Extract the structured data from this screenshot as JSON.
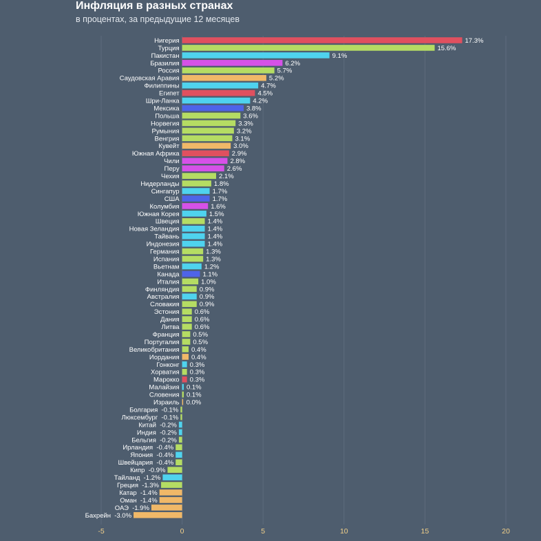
{
  "header": {
    "title": "Инфляция в разных странах",
    "subtitle": "в процентах, за предыдущие 12 месяцев"
  },
  "colors": {
    "background": "#4e5d6e",
    "red": "#e0505f",
    "green": "#b5dc63",
    "cyan": "#4fd3ee",
    "magenta": "#d651e8",
    "orange": "#f0b868",
    "blue": "#4e64e8",
    "tick_text": "#f2d08a"
  },
  "chart_data": {
    "type": "bar",
    "orientation": "horizontal",
    "title": "Инфляция в разных странах",
    "subtitle": "в процентах, за предыдущие 12 месяцев",
    "xlim": [
      -5,
      20
    ],
    "xticks": [
      "-5",
      "0",
      "5",
      "10",
      "15",
      "20"
    ],
    "grid": true,
    "legend": "none",
    "bars": [
      {
        "label": "Нигерия",
        "value": 17.3,
        "text": "17.3%",
        "color": "#e0505f"
      },
      {
        "label": "Турция",
        "value": 15.6,
        "text": "15.6%",
        "color": "#b5dc63"
      },
      {
        "label": "Пакистан",
        "value": 9.1,
        "text": "9.1%",
        "color": "#4fd3ee"
      },
      {
        "label": "Бразилия",
        "value": 6.2,
        "text": "6.2%",
        "color": "#d651e8"
      },
      {
        "label": "Россия",
        "value": 5.7,
        "text": "5.7%",
        "color": "#b5dc63"
      },
      {
        "label": "Саудовская Аравия",
        "value": 5.2,
        "text": "5.2%",
        "color": "#f0b868"
      },
      {
        "label": "Филиппины",
        "value": 4.7,
        "text": "4.7%",
        "color": "#4fd3ee"
      },
      {
        "label": "Египет",
        "value": 4.5,
        "text": "4.5%",
        "color": "#e0505f"
      },
      {
        "label": "Шри-Ланка",
        "value": 4.2,
        "text": "4.2%",
        "color": "#4fd3ee"
      },
      {
        "label": "Мексика",
        "value": 3.8,
        "text": "3.8%",
        "color": "#4e64e8"
      },
      {
        "label": "Польша",
        "value": 3.6,
        "text": "3.6%",
        "color": "#b5dc63"
      },
      {
        "label": "Норвегия",
        "value": 3.3,
        "text": "3.3%",
        "color": "#b5dc63"
      },
      {
        "label": "Румыния",
        "value": 3.2,
        "text": "3.2%",
        "color": "#b5dc63"
      },
      {
        "label": "Венгрия",
        "value": 3.1,
        "text": "3.1%",
        "color": "#b5dc63"
      },
      {
        "label": "Кувейт",
        "value": 3.0,
        "text": "3.0%",
        "color": "#f0b868"
      },
      {
        "label": "Южная Африка",
        "value": 2.9,
        "text": "2.9%",
        "color": "#e0505f"
      },
      {
        "label": "Чили",
        "value": 2.8,
        "text": "2.8%",
        "color": "#d651e8"
      },
      {
        "label": "Перу",
        "value": 2.6,
        "text": "2.6%",
        "color": "#d651e8"
      },
      {
        "label": "Чехия",
        "value": 2.1,
        "text": "2.1%",
        "color": "#b5dc63"
      },
      {
        "label": "Нидерланды",
        "value": 1.8,
        "text": "1.8%",
        "color": "#b5dc63"
      },
      {
        "label": "Сингапур",
        "value": 1.7,
        "text": "1.7%",
        "color": "#4fd3ee"
      },
      {
        "label": "США",
        "value": 1.7,
        "text": "1.7%",
        "color": "#4e64e8"
      },
      {
        "label": "Колумбия",
        "value": 1.6,
        "text": "1.6%",
        "color": "#d651e8"
      },
      {
        "label": "Южная Корея",
        "value": 1.5,
        "text": "1.5%",
        "color": "#4fd3ee"
      },
      {
        "label": "Швеция",
        "value": 1.4,
        "text": "1.4%",
        "color": "#b5dc63"
      },
      {
        "label": "Новая Зеландия",
        "value": 1.4,
        "text": "1.4%",
        "color": "#4fd3ee"
      },
      {
        "label": "Тайвань",
        "value": 1.4,
        "text": "1.4%",
        "color": "#4fd3ee"
      },
      {
        "label": "Индонезия",
        "value": 1.4,
        "text": "1.4%",
        "color": "#4fd3ee"
      },
      {
        "label": "Германия",
        "value": 1.3,
        "text": "1.3%",
        "color": "#b5dc63"
      },
      {
        "label": "Испания",
        "value": 1.3,
        "text": "1.3%",
        "color": "#b5dc63"
      },
      {
        "label": "Вьетнам",
        "value": 1.2,
        "text": "1.2%",
        "color": "#4fd3ee"
      },
      {
        "label": "Канада",
        "value": 1.1,
        "text": "1.1%",
        "color": "#4e64e8"
      },
      {
        "label": "Италия",
        "value": 1.0,
        "text": "1.0%",
        "color": "#b5dc63"
      },
      {
        "label": "Финляндия",
        "value": 0.9,
        "text": "0.9%",
        "color": "#b5dc63"
      },
      {
        "label": "Австралия",
        "value": 0.9,
        "text": "0.9%",
        "color": "#4fd3ee"
      },
      {
        "label": "Словакия",
        "value": 0.9,
        "text": "0.9%",
        "color": "#b5dc63"
      },
      {
        "label": "Эстония",
        "value": 0.6,
        "text": "0.6%",
        "color": "#b5dc63"
      },
      {
        "label": "Дания",
        "value": 0.6,
        "text": "0.6%",
        "color": "#b5dc63"
      },
      {
        "label": "Литва",
        "value": 0.6,
        "text": "0.6%",
        "color": "#b5dc63"
      },
      {
        "label": "Франция",
        "value": 0.5,
        "text": "0.5%",
        "color": "#b5dc63"
      },
      {
        "label": "Португалия",
        "value": 0.5,
        "text": "0.5%",
        "color": "#b5dc63"
      },
      {
        "label": "Великобритания",
        "value": 0.4,
        "text": "0.4%",
        "color": "#b5dc63"
      },
      {
        "label": "Иордания",
        "value": 0.4,
        "text": "0.4%",
        "color": "#f0b868"
      },
      {
        "label": "Гонконг",
        "value": 0.3,
        "text": "0.3%",
        "color": "#4fd3ee"
      },
      {
        "label": "Хорватия",
        "value": 0.3,
        "text": "0.3%",
        "color": "#b5dc63"
      },
      {
        "label": "Марокко",
        "value": 0.3,
        "text": "0.3%",
        "color": "#e0505f"
      },
      {
        "label": "Малайзия",
        "value": 0.1,
        "text": "0.1%",
        "color": "#4fd3ee"
      },
      {
        "label": "Словения",
        "value": 0.1,
        "text": "0.1%",
        "color": "#b5dc63"
      },
      {
        "label": "Израиль",
        "value": 0.0,
        "text": "0.0%",
        "color": "#f0b868"
      },
      {
        "label": "Болгария",
        "value": -0.1,
        "text": "-0.1%",
        "color": "#b5dc63"
      },
      {
        "label": "Люксембург",
        "value": -0.1,
        "text": "-0.1%",
        "color": "#b5dc63"
      },
      {
        "label": "Китай",
        "value": -0.2,
        "text": "-0.2%",
        "color": "#4fd3ee"
      },
      {
        "label": "Индия",
        "value": -0.2,
        "text": "-0.2%",
        "color": "#4fd3ee"
      },
      {
        "label": "Бельгия",
        "value": -0.2,
        "text": "-0.2%",
        "color": "#b5dc63"
      },
      {
        "label": "Ирландия",
        "value": -0.4,
        "text": "-0.4%",
        "color": "#b5dc63"
      },
      {
        "label": "Япония",
        "value": -0.4,
        "text": "-0.4%",
        "color": "#4fd3ee"
      },
      {
        "label": "Швейцария",
        "value": -0.4,
        "text": "-0.4%",
        "color": "#b5dc63"
      },
      {
        "label": "Кипр",
        "value": -0.9,
        "text": "-0.9%",
        "color": "#b5dc63"
      },
      {
        "label": "Тайланд",
        "value": -1.2,
        "text": "-1.2%",
        "color": "#4fd3ee"
      },
      {
        "label": "Греция",
        "value": -1.3,
        "text": "-1.3%",
        "color": "#b5dc63"
      },
      {
        "label": "Катар",
        "value": -1.4,
        "text": "-1.4%",
        "color": "#f0b868"
      },
      {
        "label": "Оман",
        "value": -1.4,
        "text": "-1.4%",
        "color": "#f0b868"
      },
      {
        "label": "ОАЭ",
        "value": -1.9,
        "text": "-1.9%",
        "color": "#f0b868"
      },
      {
        "label": "Бахрейн",
        "value": -3.0,
        "text": "-3.0%",
        "color": "#f0b868"
      }
    ]
  }
}
